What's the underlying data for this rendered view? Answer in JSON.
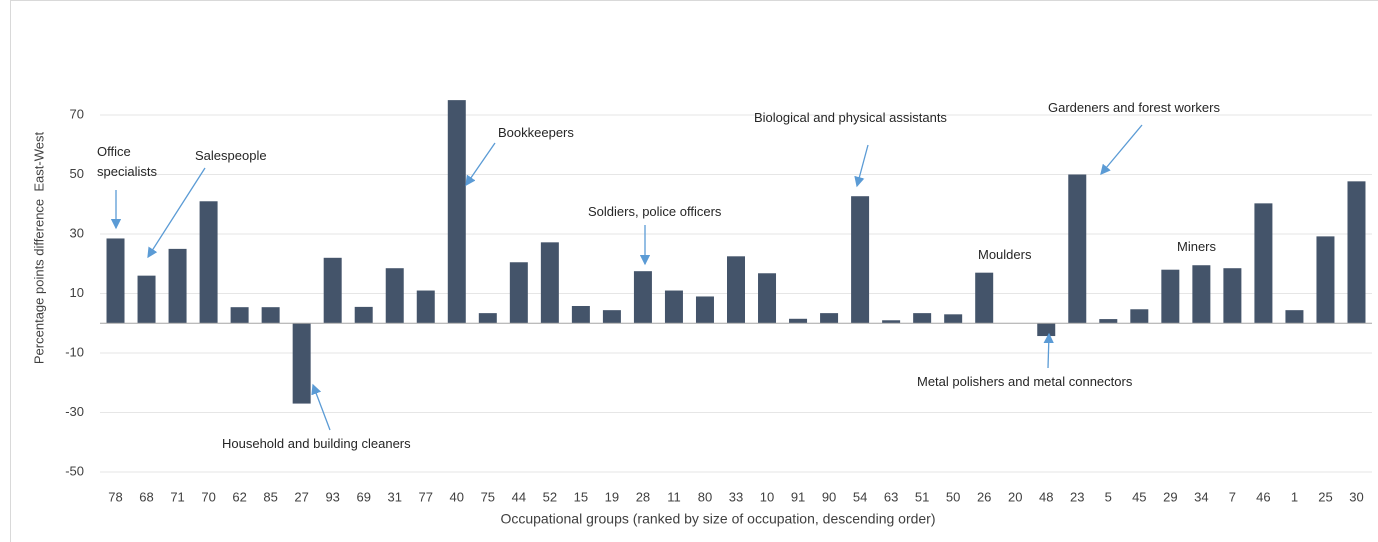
{
  "chart_data": {
    "type": "bar",
    "y_label": "Percentage points difference  East-West",
    "x_label": "Occupational groups (ranked by size of occupation, descending order)",
    "categories": [
      "78",
      "68",
      "71",
      "70",
      "62",
      "85",
      "27",
      "93",
      "69",
      "31",
      "77",
      "40",
      "75",
      "44",
      "52",
      "15",
      "19",
      "28",
      "11",
      "80",
      "33",
      "10",
      "91",
      "90",
      "54",
      "63",
      "51",
      "50",
      "26",
      "20",
      "48",
      "23",
      "5",
      "45",
      "29",
      "34",
      "7",
      "46",
      "1",
      "25",
      "30"
    ],
    "values": [
      28.5,
      16,
      25,
      41,
      5.4,
      5.4,
      -27,
      22,
      5.5,
      18.5,
      11,
      75,
      3.4,
      20.5,
      27.2,
      5.8,
      4.4,
      17.5,
      11,
      9,
      22.5,
      16.8,
      1.5,
      3.4,
      42.7,
      1,
      3.4,
      3,
      17,
      0,
      -4.3,
      50,
      1.4,
      4.7,
      18,
      19.5,
      18.5,
      40.3,
      4.4,
      29.2,
      47.7
    ],
    "color": "#44546a",
    "ylim": [
      -50,
      75
    ],
    "yticks": [
      -50,
      -30,
      -10,
      10,
      30,
      50,
      70
    ],
    "grid": true,
    "annotations": [
      "Office specialists",
      "Salespeople",
      "Household and building cleaners",
      "Bookkeepers",
      "Soldiers, police officers",
      "Biological and physical assistants",
      "Moulders",
      "Metal polishers and metal connectors",
      "Gardeners and forest workers",
      "Miners"
    ]
  }
}
